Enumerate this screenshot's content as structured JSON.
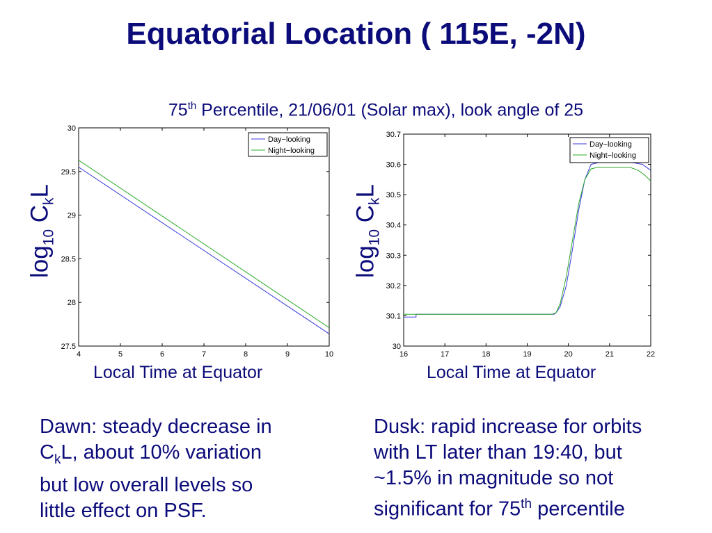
{
  "title": "Equatorial Location ( 115E, -2N)",
  "subtitle": {
    "pre": "75",
    "sup": "th",
    "post": " Percentile, 21/06/01 (Solar max), look angle of 25"
  },
  "axis_label": {
    "y_pre": "log",
    "y_sub1": "10",
    "y_mid": " C",
    "y_sub2": "k",
    "y_post": "L",
    "x": "Local Time at Equator"
  },
  "notes": {
    "dawn": {
      "l1": "Dawn: steady decrease in",
      "l2_pre": "C",
      "l2_sub": "k",
      "l2_post": "L, about 10% variation",
      "l3": "but low overall levels so",
      "l4": "little effect on PSF."
    },
    "dusk": {
      "l1": "Dusk: rapid increase for orbits",
      "l2": "with LT later than 19:40, but",
      "l3": "~1.5% in magnitude so  not",
      "l4_pre": "significant for 75",
      "l4_sup": "th",
      "l4_post": " percentile"
    }
  },
  "colors": {
    "day": "#3b3bdc",
    "night": "#2aa82a",
    "text": "#0b0b7a"
  },
  "chart_data": [
    {
      "type": "line",
      "xlim": [
        4,
        10
      ],
      "ylim": [
        27.5,
        30
      ],
      "xticks": [
        "4",
        "5",
        "6",
        "7",
        "8",
        "9",
        "10"
      ],
      "yticks": [
        "27.5",
        "28",
        "28.5",
        "29",
        "29.5",
        "30"
      ],
      "legend": "top-right",
      "series": [
        {
          "name": "Day−looking",
          "x": [
            4,
            10
          ],
          "y": [
            29.55,
            27.64
          ]
        },
        {
          "name": "Night−looking",
          "x": [
            4,
            10
          ],
          "y": [
            29.63,
            27.71
          ]
        }
      ]
    },
    {
      "type": "line",
      "xlim": [
        16,
        22
      ],
      "ylim": [
        30,
        30.7
      ],
      "xticks": [
        "16",
        "17",
        "18",
        "19",
        "20",
        "21",
        "22"
      ],
      "yticks": [
        "30",
        "30.1",
        "30.2",
        "30.3",
        "30.4",
        "30.5",
        "30.6",
        "30.7"
      ],
      "legend": "top-right",
      "series": [
        {
          "name": "Day−looking",
          "x": [
            16,
            16.3,
            16.3,
            19.65,
            19.7,
            19.8,
            19.95,
            20.1,
            20.25,
            20.4,
            20.55,
            20.7,
            21.0,
            21.3,
            21.6,
            21.8,
            22.0
          ],
          "y": [
            30.096,
            30.096,
            30.105,
            30.105,
            30.11,
            30.13,
            30.2,
            30.32,
            30.45,
            30.55,
            30.6,
            30.605,
            30.61,
            30.61,
            30.605,
            30.6,
            30.58
          ]
        },
        {
          "name": "Night−looking",
          "x": [
            16,
            19.6,
            19.7,
            19.8,
            19.95,
            20.1,
            20.25,
            20.4,
            20.55,
            20.7,
            21.0,
            21.3,
            21.5,
            21.7,
            21.85,
            22.0
          ],
          "y": [
            30.105,
            30.105,
            30.11,
            30.14,
            30.23,
            30.35,
            30.47,
            30.55,
            30.585,
            30.59,
            30.59,
            30.59,
            30.59,
            30.58,
            30.565,
            30.545
          ]
        }
      ]
    }
  ]
}
